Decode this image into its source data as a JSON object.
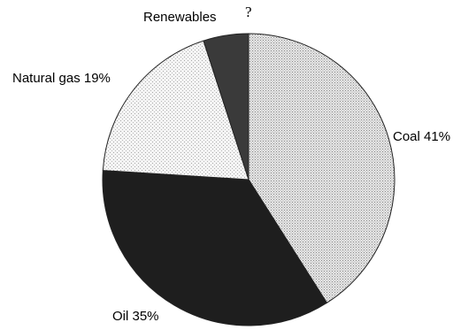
{
  "chart_data": {
    "type": "pie",
    "title": "",
    "start_angle_deg": 0,
    "direction": "clockwise",
    "slices": [
      {
        "label": "Coal",
        "value": 41,
        "value_text": "41%",
        "display": "Coal 41%",
        "fill": "#d6d6d6",
        "pattern": "dots-light"
      },
      {
        "label": "Oil",
        "value": 35,
        "value_text": "35%",
        "display": "Oil 35%",
        "fill": "#1e1e1e",
        "pattern": "none"
      },
      {
        "label": "Natural gas",
        "value": 19,
        "value_text": "19%",
        "display": "Natural gas 19%",
        "fill": "#ececec",
        "pattern": "dots-sparse"
      },
      {
        "label": "Renewables",
        "value": 5,
        "value_text": "?",
        "display": "Renewables",
        "fill": "#3a3a3a",
        "pattern": "none"
      }
    ],
    "unknown_marker": "?"
  }
}
